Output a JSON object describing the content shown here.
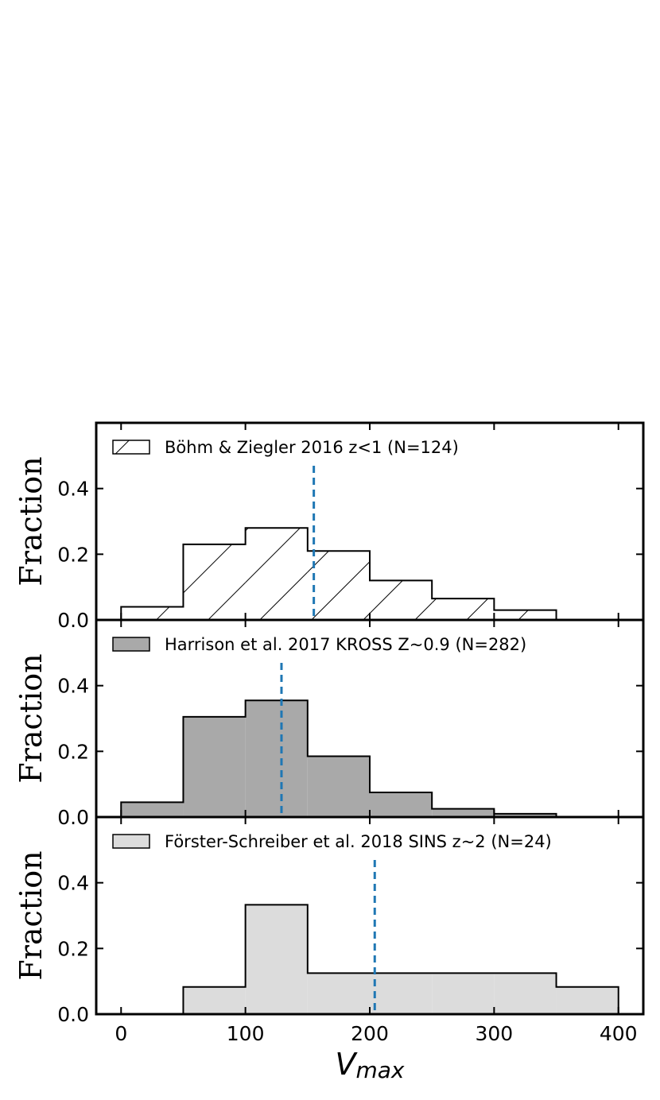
{
  "chart_data": {
    "type": "bar",
    "subtype": "stacked-panel step histograms sharing x axis",
    "xlabel": "V",
    "xlabel_sub": "max",
    "xlim": [
      -20,
      420
    ],
    "xticks": [
      "0",
      "100",
      "200",
      "300",
      "400"
    ],
    "bin_edges": [
      0,
      50,
      100,
      150,
      200,
      250,
      300,
      350,
      400
    ],
    "panels": [
      {
        "legend": "Böhm & Ziegler 2016 z<1 (N=124)",
        "style": "hatched",
        "fill": "#ffffff",
        "edge": "#000000",
        "ylabel": "Fraction",
        "ylim": [
          0,
          0.6
        ],
        "yticks": [
          "0.0",
          "0.2",
          "0.4"
        ],
        "values": [
          0.04,
          0.23,
          0.28,
          0.21,
          0.12,
          0.065,
          0.03,
          0
        ],
        "median_line": 155,
        "median_color": "#1f77b4"
      },
      {
        "legend": "Harrison et al. 2017 KROSS Z~0.9 (N=282)",
        "style": "filled",
        "fill": "#a9a9a9",
        "edge": "#000000",
        "ylabel": "Fraction",
        "ylim": [
          0,
          0.6
        ],
        "yticks": [
          "0.0",
          "0.2",
          "0.4"
        ],
        "values": [
          0.045,
          0.305,
          0.355,
          0.185,
          0.075,
          0.025,
          0.01,
          0
        ],
        "median_line": 129,
        "median_color": "#1f77b4"
      },
      {
        "legend": "Förster-Schreiber et al. 2018 SINS z~2 (N=24)",
        "style": "filled",
        "fill": "#dcdcdc",
        "edge": "#000000",
        "ylabel": "Fraction",
        "ylim": [
          0,
          0.6
        ],
        "yticks": [
          "0.0",
          "0.2",
          "0.4"
        ],
        "values": [
          0,
          0.083,
          0.333,
          0.125,
          0.125,
          0.125,
          0.125,
          0.083
        ],
        "median_line": 204,
        "median_color": "#1f77b4"
      }
    ]
  }
}
